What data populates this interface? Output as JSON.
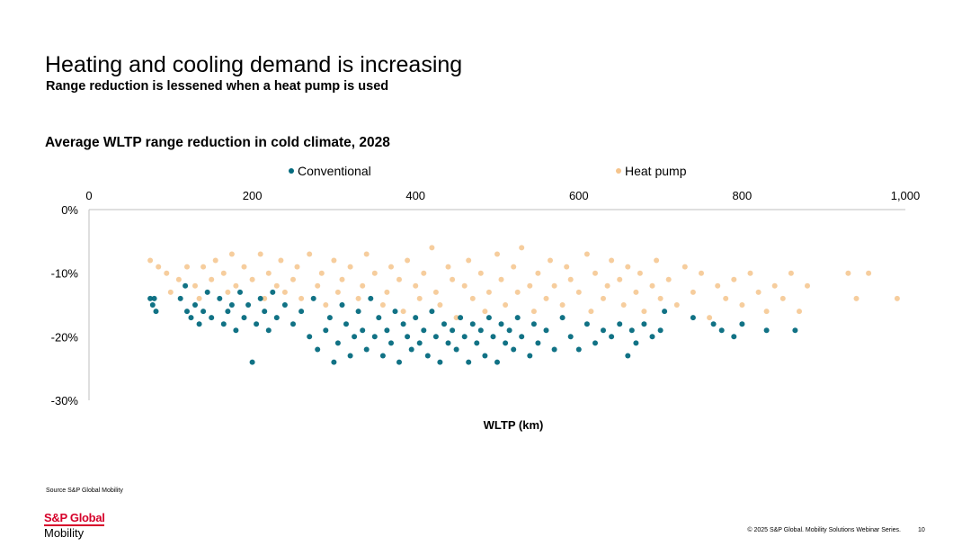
{
  "slide": {
    "title": "Heating and cooling demand is increasing",
    "subtitle": "Range reduction is lessened when a heat pump is used",
    "source": "Source S&P Global Mobility",
    "logo_brand": "S&P Global",
    "logo_sub": "Mobility",
    "copyright": "© 2025 S&P Global. Mobility Solutions Webinar Series.",
    "page_number": "10"
  },
  "colors": {
    "conventional": "#046a7e",
    "heat_pump": "#f5c48c",
    "axis": "#bfbfbf",
    "brand": "#d6002a"
  },
  "chart_data": {
    "type": "scatter",
    "title": "Average WLTP range reduction in cold climate, 2028",
    "xlabel": "WLTP (km)",
    "ylabel": "",
    "xlim": [
      0,
      1000
    ],
    "ylim": [
      -30,
      0
    ],
    "x_ticks": [
      0,
      200,
      400,
      600,
      800,
      1000
    ],
    "x_tick_labels": [
      "0",
      "200",
      "400",
      "600",
      "800",
      "1,000"
    ],
    "y_ticks": [
      0,
      -10,
      -20,
      -30
    ],
    "y_tick_labels": [
      "0%",
      "-10%",
      "-20%",
      "-30%"
    ],
    "x_axis_position": "top",
    "grid": false,
    "legend_position": "top",
    "series": [
      {
        "name": "Conventional",
        "points": [
          [
            75,
            -14
          ],
          [
            78,
            -15
          ],
          [
            82,
            -16
          ],
          [
            80,
            -14
          ],
          [
            112,
            -14
          ],
          [
            118,
            -12
          ],
          [
            120,
            -16
          ],
          [
            125,
            -17
          ],
          [
            130,
            -15
          ],
          [
            135,
            -18
          ],
          [
            140,
            -16
          ],
          [
            145,
            -13
          ],
          [
            150,
            -17
          ],
          [
            160,
            -14
          ],
          [
            165,
            -18
          ],
          [
            170,
            -16
          ],
          [
            175,
            -15
          ],
          [
            180,
            -19
          ],
          [
            185,
            -13
          ],
          [
            190,
            -17
          ],
          [
            195,
            -15
          ],
          [
            200,
            -24
          ],
          [
            205,
            -18
          ],
          [
            210,
            -14
          ],
          [
            215,
            -16
          ],
          [
            220,
            -19
          ],
          [
            225,
            -13
          ],
          [
            230,
            -17
          ],
          [
            240,
            -15
          ],
          [
            250,
            -18
          ],
          [
            260,
            -16
          ],
          [
            270,
            -20
          ],
          [
            275,
            -14
          ],
          [
            280,
            -22
          ],
          [
            290,
            -19
          ],
          [
            295,
            -17
          ],
          [
            300,
            -24
          ],
          [
            305,
            -21
          ],
          [
            310,
            -15
          ],
          [
            315,
            -18
          ],
          [
            320,
            -23
          ],
          [
            325,
            -20
          ],
          [
            330,
            -16
          ],
          [
            335,
            -19
          ],
          [
            340,
            -22
          ],
          [
            345,
            -14
          ],
          [
            350,
            -20
          ],
          [
            355,
            -17
          ],
          [
            360,
            -23
          ],
          [
            365,
            -19
          ],
          [
            370,
            -21
          ],
          [
            375,
            -16
          ],
          [
            380,
            -24
          ],
          [
            385,
            -18
          ],
          [
            390,
            -20
          ],
          [
            395,
            -22
          ],
          [
            400,
            -17
          ],
          [
            405,
            -21
          ],
          [
            410,
            -19
          ],
          [
            415,
            -23
          ],
          [
            420,
            -16
          ],
          [
            425,
            -20
          ],
          [
            430,
            -24
          ],
          [
            435,
            -18
          ],
          [
            440,
            -21
          ],
          [
            445,
            -19
          ],
          [
            450,
            -22
          ],
          [
            455,
            -17
          ],
          [
            460,
            -20
          ],
          [
            465,
            -24
          ],
          [
            470,
            -18
          ],
          [
            475,
            -21
          ],
          [
            480,
            -19
          ],
          [
            485,
            -23
          ],
          [
            490,
            -17
          ],
          [
            495,
            -20
          ],
          [
            500,
            -24
          ],
          [
            505,
            -18
          ],
          [
            510,
            -21
          ],
          [
            515,
            -19
          ],
          [
            520,
            -22
          ],
          [
            525,
            -17
          ],
          [
            530,
            -20
          ],
          [
            540,
            -23
          ],
          [
            545,
            -18
          ],
          [
            550,
            -21
          ],
          [
            560,
            -19
          ],
          [
            570,
            -22
          ],
          [
            580,
            -17
          ],
          [
            590,
            -20
          ],
          [
            600,
            -22
          ],
          [
            610,
            -18
          ],
          [
            620,
            -21
          ],
          [
            630,
            -19
          ],
          [
            640,
            -20
          ],
          [
            650,
            -18
          ],
          [
            660,
            -23
          ],
          [
            665,
            -19
          ],
          [
            670,
            -21
          ],
          [
            680,
            -18
          ],
          [
            690,
            -20
          ],
          [
            700,
            -19
          ],
          [
            705,
            -16
          ],
          [
            740,
            -17
          ],
          [
            765,
            -18
          ],
          [
            775,
            -19
          ],
          [
            790,
            -20
          ],
          [
            800,
            -18
          ],
          [
            830,
            -19
          ],
          [
            865,
            -19
          ]
        ]
      },
      {
        "name": "Heat pump",
        "points": [
          [
            75,
            -8
          ],
          [
            85,
            -9
          ],
          [
            95,
            -10
          ],
          [
            100,
            -13
          ],
          [
            110,
            -11
          ],
          [
            120,
            -9
          ],
          [
            130,
            -12
          ],
          [
            135,
            -14
          ],
          [
            140,
            -9
          ],
          [
            150,
            -11
          ],
          [
            155,
            -8
          ],
          [
            165,
            -10
          ],
          [
            170,
            -13
          ],
          [
            175,
            -7
          ],
          [
            180,
            -12
          ],
          [
            190,
            -9
          ],
          [
            200,
            -11
          ],
          [
            210,
            -7
          ],
          [
            215,
            -14
          ],
          [
            220,
            -10
          ],
          [
            230,
            -12
          ],
          [
            235,
            -8
          ],
          [
            240,
            -13
          ],
          [
            250,
            -11
          ],
          [
            255,
            -9
          ],
          [
            260,
            -14
          ],
          [
            270,
            -7
          ],
          [
            280,
            -12
          ],
          [
            285,
            -10
          ],
          [
            290,
            -15
          ],
          [
            300,
            -8
          ],
          [
            305,
            -13
          ],
          [
            310,
            -11
          ],
          [
            320,
            -9
          ],
          [
            330,
            -14
          ],
          [
            335,
            -12
          ],
          [
            340,
            -7
          ],
          [
            350,
            -10
          ],
          [
            360,
            -15
          ],
          [
            365,
            -13
          ],
          [
            370,
            -9
          ],
          [
            380,
            -11
          ],
          [
            385,
            -16
          ],
          [
            390,
            -8
          ],
          [
            400,
            -12
          ],
          [
            405,
            -14
          ],
          [
            410,
            -10
          ],
          [
            420,
            -6
          ],
          [
            425,
            -13
          ],
          [
            430,
            -15
          ],
          [
            440,
            -9
          ],
          [
            445,
            -11
          ],
          [
            450,
            -17
          ],
          [
            460,
            -12
          ],
          [
            465,
            -8
          ],
          [
            470,
            -14
          ],
          [
            480,
            -10
          ],
          [
            485,
            -16
          ],
          [
            490,
            -13
          ],
          [
            500,
            -7
          ],
          [
            505,
            -11
          ],
          [
            510,
            -15
          ],
          [
            520,
            -9
          ],
          [
            525,
            -13
          ],
          [
            530,
            -6
          ],
          [
            540,
            -12
          ],
          [
            545,
            -16
          ],
          [
            550,
            -10
          ],
          [
            560,
            -14
          ],
          [
            565,
            -8
          ],
          [
            570,
            -12
          ],
          [
            580,
            -15
          ],
          [
            585,
            -9
          ],
          [
            590,
            -11
          ],
          [
            600,
            -13
          ],
          [
            610,
            -7
          ],
          [
            615,
            -16
          ],
          [
            620,
            -10
          ],
          [
            630,
            -14
          ],
          [
            635,
            -12
          ],
          [
            640,
            -8
          ],
          [
            650,
            -11
          ],
          [
            655,
            -15
          ],
          [
            660,
            -9
          ],
          [
            670,
            -13
          ],
          [
            675,
            -10
          ],
          [
            680,
            -16
          ],
          [
            690,
            -12
          ],
          [
            695,
            -8
          ],
          [
            700,
            -14
          ],
          [
            710,
            -11
          ],
          [
            720,
            -15
          ],
          [
            730,
            -9
          ],
          [
            740,
            -13
          ],
          [
            750,
            -10
          ],
          [
            760,
            -17
          ],
          [
            770,
            -12
          ],
          [
            780,
            -14
          ],
          [
            790,
            -11
          ],
          [
            800,
            -15
          ],
          [
            810,
            -10
          ],
          [
            820,
            -13
          ],
          [
            830,
            -16
          ],
          [
            840,
            -12
          ],
          [
            850,
            -14
          ],
          [
            860,
            -10
          ],
          [
            870,
            -16
          ],
          [
            880,
            -12
          ],
          [
            930,
            -10
          ],
          [
            940,
            -14
          ],
          [
            955,
            -10
          ],
          [
            990,
            -14
          ]
        ]
      }
    ]
  }
}
